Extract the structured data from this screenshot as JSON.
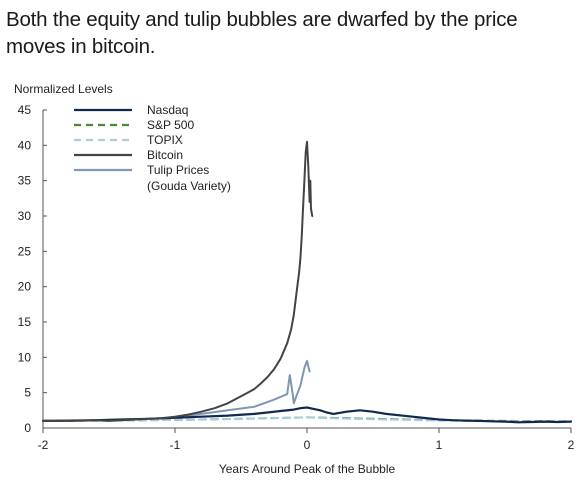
{
  "title": "Both the equity and tulip bubbles are dwarfed by the price moves in bitcoin.",
  "chart_data": {
    "type": "line",
    "ylabel": "Normalized Levels",
    "xlabel": "Years Around Peak of the Bubble",
    "xlim": [
      -2,
      2
    ],
    "ylim": [
      0,
      45
    ],
    "x_ticks": [
      -2,
      -1,
      0,
      1,
      2
    ],
    "y_ticks": [
      0,
      5,
      10,
      15,
      20,
      25,
      30,
      35,
      40,
      45
    ],
    "x_tick_labels": [
      "-2",
      "-1",
      "0",
      "1",
      "2"
    ],
    "y_tick_labels": [
      "0",
      "5",
      "10",
      "15",
      "20",
      "25",
      "30",
      "35",
      "40",
      "45"
    ],
    "grid": false,
    "legend_position": "top-left",
    "series": [
      {
        "name": "Nasdaq",
        "color": "#10284f",
        "style": "solid",
        "points": [
          [
            -2,
            1.0
          ],
          [
            -1.8,
            1.05
          ],
          [
            -1.6,
            1.1
          ],
          [
            -1.4,
            1.2
          ],
          [
            -1.2,
            1.3
          ],
          [
            -1.0,
            1.45
          ],
          [
            -0.8,
            1.6
          ],
          [
            -0.6,
            1.75
          ],
          [
            -0.4,
            2.0
          ],
          [
            -0.3,
            2.2
          ],
          [
            -0.2,
            2.4
          ],
          [
            -0.1,
            2.6
          ],
          [
            -0.05,
            2.8
          ],
          [
            0,
            2.9
          ],
          [
            0.05,
            2.7
          ],
          [
            0.1,
            2.5
          ],
          [
            0.15,
            2.2
          ],
          [
            0.2,
            2.0
          ],
          [
            0.3,
            2.3
          ],
          [
            0.4,
            2.5
          ],
          [
            0.5,
            2.3
          ],
          [
            0.6,
            2.0
          ],
          [
            0.7,
            1.8
          ],
          [
            0.8,
            1.6
          ],
          [
            0.9,
            1.4
          ],
          [
            1.0,
            1.2
          ],
          [
            1.1,
            1.1
          ],
          [
            1.2,
            1.05
          ],
          [
            1.3,
            1.0
          ],
          [
            1.4,
            0.95
          ],
          [
            1.5,
            0.9
          ],
          [
            1.6,
            0.8
          ],
          [
            1.7,
            0.85
          ],
          [
            1.8,
            0.9
          ],
          [
            1.9,
            0.85
          ],
          [
            2.0,
            0.9
          ]
        ]
      },
      {
        "name": "S&P 500",
        "color": "#4a8a2e",
        "style": "dashed",
        "points": [
          [
            -2,
            1.0
          ],
          [
            -1.5,
            1.05
          ],
          [
            -1.0,
            1.15
          ],
          [
            -0.5,
            1.3
          ],
          [
            -0.25,
            1.4
          ],
          [
            0,
            1.5
          ],
          [
            0.25,
            1.4
          ],
          [
            0.5,
            1.3
          ],
          [
            0.75,
            1.2
          ],
          [
            1.0,
            1.1
          ],
          [
            1.5,
            1.0
          ],
          [
            2.0,
            0.95
          ]
        ]
      },
      {
        "name": "TOPIX",
        "color": "#a9cbe4",
        "style": "dashed",
        "points": [
          [
            -2,
            1.0
          ],
          [
            -1.5,
            1.05
          ],
          [
            -1.0,
            1.15
          ],
          [
            -0.5,
            1.3
          ],
          [
            -0.25,
            1.4
          ],
          [
            0,
            1.5
          ],
          [
            0.25,
            1.35
          ],
          [
            0.5,
            1.25
          ],
          [
            0.75,
            1.15
          ],
          [
            1.0,
            1.05
          ],
          [
            1.5,
            0.95
          ],
          [
            2.0,
            0.9
          ]
        ]
      },
      {
        "name": "Bitcoin",
        "color": "#444444",
        "style": "solid",
        "points": [
          [
            -2,
            1.0
          ],
          [
            -1.8,
            1.0
          ],
          [
            -1.6,
            1.1
          ],
          [
            -1.5,
            1.0
          ],
          [
            -1.4,
            1.1
          ],
          [
            -1.3,
            1.2
          ],
          [
            -1.2,
            1.3
          ],
          [
            -1.1,
            1.4
          ],
          [
            -1.0,
            1.6
          ],
          [
            -0.9,
            1.9
          ],
          [
            -0.8,
            2.3
          ],
          [
            -0.7,
            2.8
          ],
          [
            -0.6,
            3.5
          ],
          [
            -0.5,
            4.5
          ],
          [
            -0.45,
            5.0
          ],
          [
            -0.4,
            5.5
          ],
          [
            -0.35,
            6.3
          ],
          [
            -0.3,
            7.2
          ],
          [
            -0.25,
            8.3
          ],
          [
            -0.2,
            9.8
          ],
          [
            -0.15,
            12.0
          ],
          [
            -0.12,
            14.0
          ],
          [
            -0.1,
            16.0
          ],
          [
            -0.08,
            19.0
          ],
          [
            -0.06,
            22.0
          ],
          [
            -0.05,
            24.0
          ],
          [
            -0.04,
            27.0
          ],
          [
            -0.03,
            31.0
          ],
          [
            -0.02,
            35.0
          ],
          [
            -0.01,
            39.0
          ],
          [
            0,
            40.5
          ],
          [
            0.01,
            37.0
          ],
          [
            0.02,
            32.0
          ],
          [
            0.025,
            35.0
          ],
          [
            0.03,
            31.0
          ],
          [
            0.04,
            30.0
          ]
        ]
      },
      {
        "name": "Tulip Prices (Gouda Variety)",
        "legend_lines": [
          "Tulip Prices",
          "(Gouda Variety)"
        ],
        "color": "#7f97b5",
        "style": "solid",
        "points": [
          [
            -1.0,
            1.5
          ],
          [
            -0.8,
            2.0
          ],
          [
            -0.6,
            2.5
          ],
          [
            -0.4,
            3.0
          ],
          [
            -0.25,
            4.0
          ],
          [
            -0.15,
            4.8
          ],
          [
            -0.13,
            7.5
          ],
          [
            -0.11,
            5.0
          ],
          [
            -0.1,
            3.5
          ],
          [
            -0.08,
            4.5
          ],
          [
            -0.05,
            6.0
          ],
          [
            -0.02,
            8.5
          ],
          [
            0,
            9.5
          ],
          [
            0.02,
            8.0
          ]
        ]
      }
    ]
  }
}
